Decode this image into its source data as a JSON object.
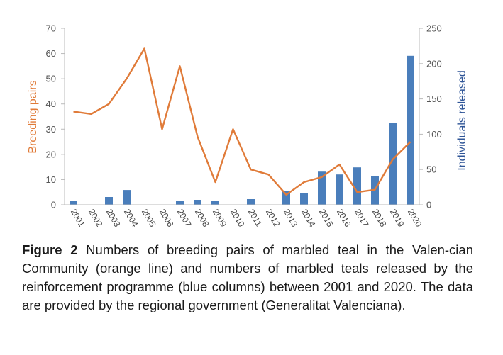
{
  "chart_data": {
    "type": "bar+line",
    "categories": [
      "2001",
      "2002",
      "2003",
      "2004",
      "2005",
      "2006",
      "2007",
      "2008",
      "2009",
      "2010",
      "2011",
      "2012",
      "2013",
      "2014",
      "2015",
      "2016",
      "2017",
      "2018",
      "2019",
      "2020"
    ],
    "bar_series": {
      "values": [
        5,
        0,
        11,
        21,
        0,
        0,
        6,
        7,
        6,
        0,
        8,
        0,
        20,
        17,
        47,
        43,
        53,
        41,
        116,
        211
      ],
      "color": "#4a7ebb",
      "axis": "right"
    },
    "line_series": {
      "values": [
        37,
        36,
        40,
        50,
        62,
        30,
        55,
        27,
        9,
        30,
        14,
        12,
        4,
        9,
        11,
        16,
        5,
        6,
        18,
        25
      ],
      "color": "#e07b39",
      "axis": "left"
    },
    "left_axis": {
      "label": "Breeding pairs",
      "ylim": [
        0,
        70
      ],
      "ticks": [
        0,
        10,
        20,
        30,
        40,
        50,
        60,
        70
      ],
      "color": "#e07b39"
    },
    "right_axis": {
      "label": "Individuals released",
      "ylim": [
        0,
        250
      ],
      "ticks": [
        0,
        50,
        100,
        150,
        200,
        250
      ],
      "color": "#2f5597"
    },
    "grid": false
  },
  "caption": {
    "label": "Figure 2",
    "text": " Numbers of breeding pairs of marbled teal in the Valen-cian Community (orange line) and numbers of marbled teals released by the reinforcement programme (blue columns) between 2001 and 2020. The data are provided by the regional government (Generalitat Valenciana)."
  }
}
